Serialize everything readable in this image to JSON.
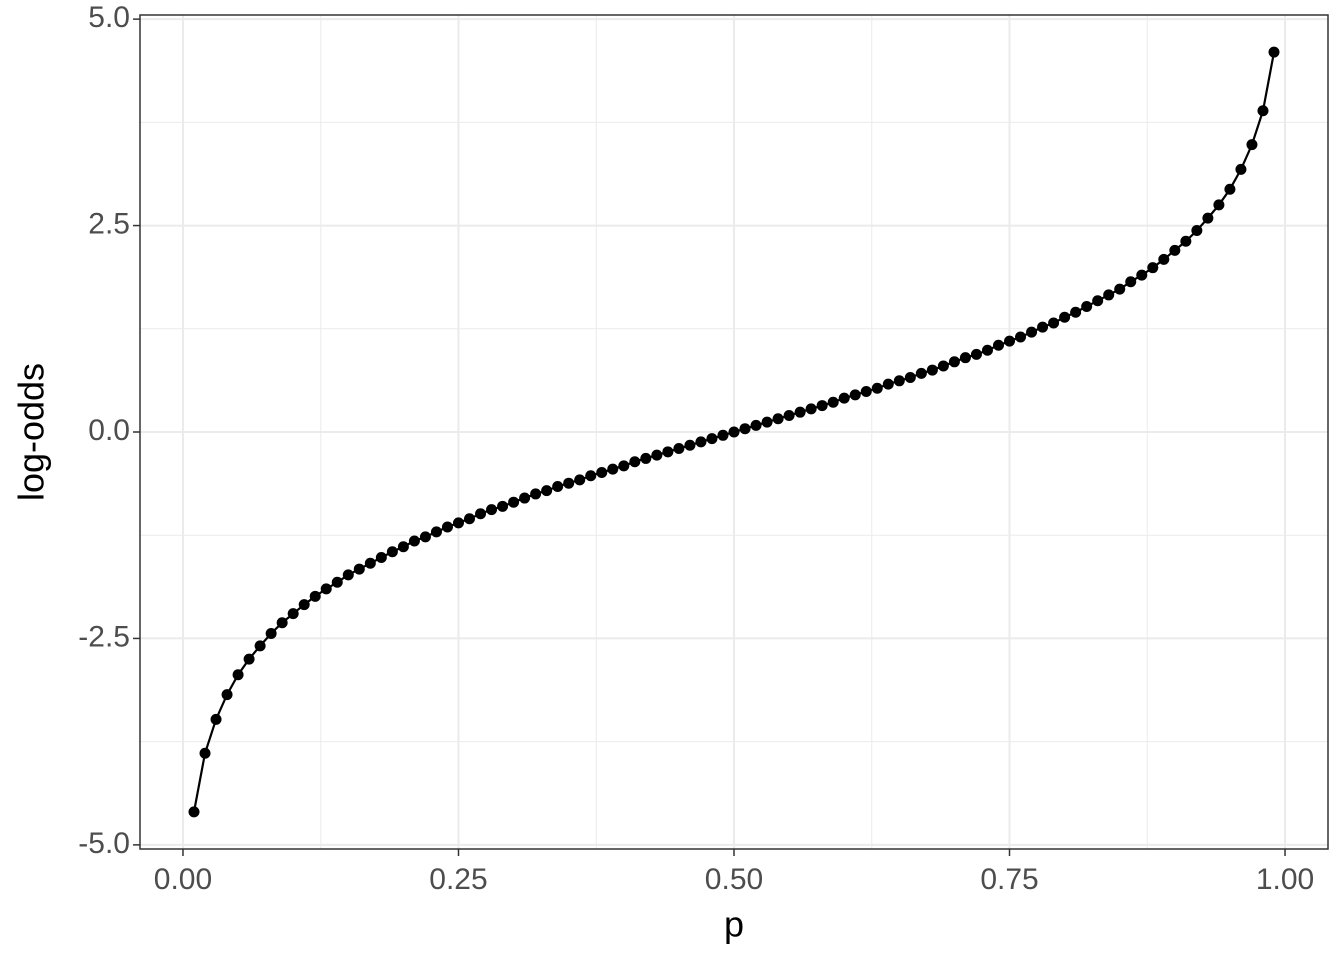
{
  "chart_data": {
    "type": "line",
    "marker": "circle",
    "x_label": "p",
    "y_label": "log-odds",
    "x": [
      0.01,
      0.02,
      0.03,
      0.04,
      0.05,
      0.06,
      0.07,
      0.08,
      0.09,
      0.1,
      0.11,
      0.12,
      0.13,
      0.14,
      0.15,
      0.16,
      0.17,
      0.18,
      0.19,
      0.2,
      0.21,
      0.22,
      0.23,
      0.24,
      0.25,
      0.26,
      0.27,
      0.28,
      0.29,
      0.3,
      0.31,
      0.32,
      0.33,
      0.34,
      0.35,
      0.36,
      0.37,
      0.38,
      0.39,
      0.4,
      0.41,
      0.42,
      0.43,
      0.44,
      0.45,
      0.46,
      0.47,
      0.48,
      0.49,
      0.5,
      0.51,
      0.52,
      0.53,
      0.54,
      0.55,
      0.56,
      0.57,
      0.58,
      0.59,
      0.6,
      0.61,
      0.62,
      0.63,
      0.64,
      0.65,
      0.66,
      0.67,
      0.68,
      0.69,
      0.7,
      0.71,
      0.72,
      0.73,
      0.74,
      0.75,
      0.76,
      0.77,
      0.78,
      0.79,
      0.8,
      0.81,
      0.82,
      0.83,
      0.84,
      0.85,
      0.86,
      0.87,
      0.88,
      0.89,
      0.9,
      0.91,
      0.92,
      0.93,
      0.94,
      0.95,
      0.96,
      0.97,
      0.98,
      0.99
    ],
    "values": [
      -4.6,
      -3.89,
      -3.48,
      -3.18,
      -2.94,
      -2.75,
      -2.59,
      -2.44,
      -2.31,
      -2.2,
      -2.09,
      -1.99,
      -1.9,
      -1.82,
      -1.73,
      -1.66,
      -1.59,
      -1.52,
      -1.45,
      -1.39,
      -1.32,
      -1.27,
      -1.21,
      -1.15,
      -1.1,
      -1.05,
      -0.99,
      -0.94,
      -0.9,
      -0.85,
      -0.8,
      -0.75,
      -0.71,
      -0.66,
      -0.62,
      -0.58,
      -0.53,
      -0.49,
      -0.45,
      -0.41,
      -0.36,
      -0.32,
      -0.28,
      -0.24,
      -0.2,
      -0.16,
      -0.12,
      -0.08,
      -0.04,
      0,
      0.04,
      0.08,
      0.12,
      0.16,
      0.2,
      0.24,
      0.28,
      0.32,
      0.36,
      0.41,
      0.45,
      0.49,
      0.53,
      0.58,
      0.62,
      0.66,
      0.71,
      0.75,
      0.8,
      0.85,
      0.9,
      0.94,
      0.99,
      1.05,
      1.1,
      1.15,
      1.21,
      1.27,
      1.32,
      1.39,
      1.45,
      1.52,
      1.59,
      1.66,
      1.73,
      1.82,
      1.9,
      1.99,
      2.09,
      2.2,
      2.31,
      2.44,
      2.59,
      2.75,
      2.94,
      3.18,
      3.48,
      3.89,
      4.6
    ],
    "color": "#000000",
    "xlim": [
      -0.039,
      1.039
    ],
    "ylim": [
      -5.05,
      5.05
    ],
    "xticks": [
      {
        "value": 0,
        "label": "0.00"
      },
      0.25,
      {
        "value": 0.5,
        "label": "0.50"
      },
      0.75,
      {
        "value": 1,
        "label": "1.00"
      }
    ],
    "yticks": [
      {
        "value": -5,
        "label": "-5.0"
      },
      -2.5,
      {
        "value": 0,
        "label": "0.0"
      },
      2.5,
      {
        "value": 5,
        "label": "5.0"
      }
    ],
    "x_minor_grid": [
      0.125,
      0.375,
      0.625,
      0.875
    ],
    "y_minor_grid": [
      -3.75,
      -1.25,
      1.25,
      3.75
    ],
    "grid": true
  }
}
